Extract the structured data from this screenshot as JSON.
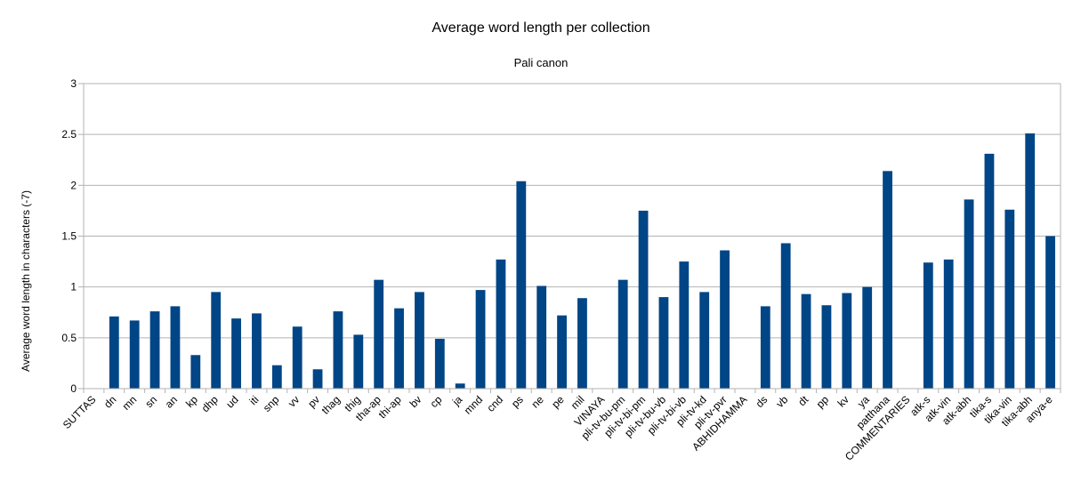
{
  "chart_data": {
    "type": "bar",
    "title": "Average word length per collection",
    "subtitle": "Pali canon",
    "xlabel": "",
    "ylabel": "Average word length in characters (-7)",
    "ylim": [
      0,
      3
    ],
    "yticks": [
      "0",
      "0.5",
      "1",
      "1.5",
      "2",
      "2.5",
      "3"
    ],
    "grid": true,
    "color": "#004586",
    "categories": [
      "SUTTAS",
      "dn",
      "mn",
      "sn",
      "an",
      "kp",
      "dhp",
      "ud",
      "iti",
      "snp",
      "vv",
      "pv",
      "thag",
      "thig",
      "tha-ap",
      "thi-ap",
      "bv",
      "cp",
      "ja",
      "mnd",
      "cnd",
      "ps",
      "ne",
      "pe",
      "mil",
      "VINAYA",
      "pli-tv-bu-pm",
      "pli-tv-bi-pm",
      "pli-tv-bu-vb",
      "pli-tv-bi-vb",
      "pli-tv-kd",
      "pli-tv-pvr",
      "ABHIDHAMMA",
      "ds",
      "vb",
      "dt",
      "pp",
      "kv",
      "ya",
      "patthana",
      "COMMENTARIES",
      "atk-s",
      "atk-vin",
      "atk-abh",
      "tika-s",
      "tika-vin",
      "tika-abh",
      "anya-e"
    ],
    "values": [
      0,
      0.71,
      0.67,
      0.76,
      0.81,
      0.33,
      0.95,
      0.69,
      0.74,
      0.23,
      0.61,
      0.19,
      0.76,
      0.53,
      1.07,
      0.79,
      0.95,
      0.49,
      0.05,
      0.97,
      1.27,
      2.04,
      1.01,
      0.72,
      0.89,
      0,
      1.07,
      1.75,
      0.9,
      1.25,
      0.95,
      1.36,
      0,
      0.81,
      1.43,
      0.93,
      0.82,
      0.94,
      1.0,
      2.14,
      0,
      1.24,
      1.27,
      1.86,
      2.31,
      1.76,
      2.51,
      1.5
    ]
  }
}
